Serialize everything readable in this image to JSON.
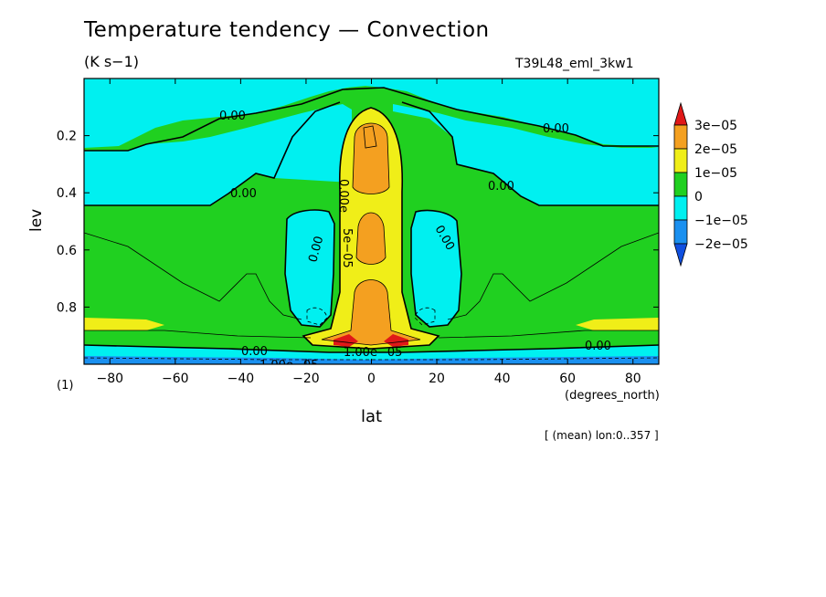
{
  "chart_data": {
    "type": "heatmap",
    "title": "Temperature tendency — Convection",
    "units": "(K s−1)",
    "run_name": "T39L48_eml_3kw1",
    "xlabel": "lat",
    "ylabel": "lev",
    "x_unit": "(degrees_north)",
    "y_unit": "(1)",
    "averaging_note": "[ (mean) lon:0..357 ]",
    "xlim": [
      -87.9,
      87.9
    ],
    "ylim": [
      1.0,
      0.0
    ],
    "x_ticks": [
      -80,
      -60,
      -40,
      -20,
      0,
      20,
      40,
      60,
      80
    ],
    "x_tick_labels": [
      "−80",
      "−60",
      "−40",
      "−20",
      "0",
      "20",
      "40",
      "60",
      "80"
    ],
    "y_ticks": [
      0.2,
      0.4,
      0.6,
      0.8
    ],
    "y_tick_labels": [
      "0.2",
      "0.4",
      "0.6",
      "0.8"
    ],
    "colorbar": {
      "levels": [
        "3e−05",
        "2e−05",
        "1e−05",
        "0",
        "−1e−05",
        "−2e−05"
      ],
      "colors": [
        "#e01818",
        "#f4a020",
        "#f0ee18",
        "#20d020",
        "#00f0f0",
        "#1a90f0",
        "#1050e0"
      ]
    },
    "contour_labels": {
      "zero": "0.00",
      "near_surface": "1.00e−05",
      "center": "0.00e",
      "center_low": "1.00e−05",
      "core": "5e−05"
    },
    "regions": {
      "background": "0 to 1e−05",
      "upper_band_negative": "−1e−05 to 0",
      "subtropical_lobes": "−1e−05 to 0",
      "tropical_column": "1e−05 to 3e−05",
      "near_surface_max": ">3e−05 at lat ±8, lev 0.93"
    }
  }
}
